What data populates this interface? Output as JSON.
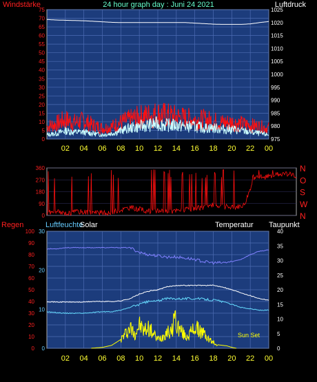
{
  "title": "24 hour graph day : Juni 24 2021",
  "colors": {
    "background": "#000000",
    "plot_bg": "#1c3c7c",
    "grid": "#4d6cb3",
    "axis_red": "#ff2020",
    "axis_white": "#ffffff",
    "axis_cyan": "#66ccff",
    "tick_yellow": "#ffff33"
  },
  "chart_data": [
    {
      "type": "line",
      "id": "wind-pressure",
      "title": "24 hour graph day : Juni 24 2021",
      "left_label": "Windstärke",
      "right_label": "Luftdruck",
      "x_ticks": [
        "02",
        "04",
        "06",
        "08",
        "10",
        "12",
        "14",
        "16",
        "18",
        "20",
        "22",
        "00"
      ],
      "left_ylim": [
        0,
        75
      ],
      "left_ticks": [
        "0",
        "5",
        "10",
        "15",
        "20",
        "25",
        "30",
        "35",
        "40",
        "45",
        "50",
        "55",
        "60",
        "65",
        "70",
        "75"
      ],
      "right_ylim": [
        975,
        1025
      ],
      "right_ticks": [
        "975",
        "980",
        "985",
        "990",
        "995",
        "1000",
        "1005",
        "1010",
        "1015",
        "1020",
        "1025"
      ],
      "grid": true,
      "series": [
        {
          "axis": "right",
          "color": "#ffffff",
          "x": [
            0,
            1,
            2,
            3,
            4,
            5,
            6,
            7,
            8,
            9,
            10,
            11,
            12,
            13,
            14,
            15,
            16,
            17,
            18,
            19,
            20,
            21,
            22,
            23,
            24
          ],
          "y": [
            1021.2,
            1021.0,
            1020.9,
            1020.8,
            1020.7,
            1020.5,
            1020.3,
            1020.1,
            1020.0,
            1020.0,
            1020.0,
            1020.0,
            1020.0,
            1020.0,
            1020.0,
            1020.0,
            1019.8,
            1019.6,
            1019.4,
            1019.3,
            1019.3,
            1019.3,
            1019.5,
            1020.0,
            1020.4
          ]
        },
        {
          "axis": "left",
          "color": "#ff1010",
          "x": [
            0,
            1,
            2,
            3,
            4,
            5,
            6,
            7,
            8,
            9,
            10,
            11,
            12,
            13,
            14,
            15,
            16,
            17,
            18,
            19,
            20,
            21,
            22,
            23,
            24
          ],
          "y": [
            9,
            11,
            14,
            12,
            13,
            10,
            8,
            9,
            12,
            14,
            16,
            17,
            18,
            17,
            16,
            15,
            14,
            14,
            13,
            12,
            12,
            11,
            10,
            9,
            8
          ]
        },
        {
          "axis": "left",
          "color": "#ccffff",
          "x": [
            0,
            1,
            2,
            3,
            4,
            5,
            6,
            7,
            8,
            9,
            10,
            11,
            12,
            13,
            14,
            15,
            16,
            17,
            18,
            19,
            20,
            21,
            22,
            23,
            24
          ],
          "y": [
            3,
            4,
            6,
            5,
            5,
            4,
            3,
            4,
            6,
            8,
            9,
            10,
            11,
            10,
            10,
            9,
            9,
            8,
            8,
            7,
            7,
            6,
            5,
            4,
            3
          ]
        }
      ]
    },
    {
      "type": "scatter",
      "id": "wind-direction",
      "x_ticks": [],
      "left_ylim": [
        0,
        360
      ],
      "left_ticks": [
        "0",
        "90",
        "180",
        "270",
        "360"
      ],
      "right_ticks": [
        "N",
        "W",
        "S",
        "O",
        "N"
      ],
      "grid": true,
      "series": [
        {
          "name": "direction",
          "color": "#ff1010",
          "x": [
            0,
            1,
            2,
            3,
            4,
            5,
            6,
            7,
            8,
            9,
            10,
            11,
            12,
            13,
            14,
            15,
            16,
            17,
            18,
            19,
            20,
            21,
            22,
            23,
            24
          ],
          "y": [
            20,
            25,
            15,
            30,
            25,
            20,
            15,
            40,
            60,
            45,
            30,
            35,
            30,
            40,
            50,
            60,
            80,
            70,
            60,
            80,
            300,
            290,
            310,
            320,
            300
          ]
        }
      ]
    },
    {
      "type": "line",
      "id": "humidity-solar-temp",
      "left_labels": [
        "Regen",
        "Luftfeuchte",
        "Solar"
      ],
      "right_labels": [
        "Temperatur",
        "Taupunkt"
      ],
      "x_ticks": [
        "02",
        "04",
        "06",
        "08",
        "10",
        "12",
        "14",
        "16",
        "18",
        "20",
        "22",
        "00"
      ],
      "rain_ylim": [
        0,
        100
      ],
      "rain_ticks": [
        "0",
        "10",
        "20",
        "30",
        "40",
        "50",
        "60",
        "70",
        "80",
        "90",
        "100"
      ],
      "hum_ticks": [
        "0",
        "10",
        "20",
        "30"
      ],
      "temp_ylim": [
        0,
        40
      ],
      "temp_ticks": [
        "0",
        "5",
        "10",
        "15",
        "20",
        "25",
        "30",
        "35",
        "40"
      ],
      "annotation": "Sun Set",
      "grid": true,
      "series": [
        {
          "axis": "rain",
          "color": "#8080ff",
          "x": [
            0,
            1,
            2,
            3,
            4,
            5,
            6,
            7,
            8,
            9,
            10,
            11,
            12,
            13,
            14,
            15,
            16,
            17,
            18,
            19,
            20,
            21,
            22,
            23,
            24
          ],
          "y": [
            85,
            85,
            86,
            86,
            86,
            86,
            86,
            86,
            86,
            86,
            82,
            80,
            79,
            78,
            78,
            77,
            76,
            74,
            73,
            73,
            74,
            76,
            80,
            83,
            84
          ]
        },
        {
          "axis": "temp",
          "color": "#ffffff",
          "x": [
            0,
            1,
            2,
            3,
            4,
            5,
            6,
            7,
            8,
            9,
            10,
            11,
            12,
            13,
            14,
            15,
            16,
            17,
            18,
            19,
            20,
            21,
            22,
            23,
            24
          ],
          "y": [
            16,
            15.8,
            15.8,
            15.8,
            15.8,
            16,
            16,
            16,
            16.2,
            17,
            18.5,
            19.5,
            20,
            21,
            21.5,
            21.5,
            21.5,
            21.5,
            21.5,
            21,
            20,
            19,
            18,
            17,
            16.5
          ]
        },
        {
          "axis": "temp",
          "color": "#66ddff",
          "x": [
            0,
            1,
            2,
            3,
            4,
            5,
            6,
            7,
            8,
            9,
            10,
            11,
            12,
            13,
            14,
            15,
            16,
            17,
            18,
            19,
            20,
            21,
            22,
            23,
            24
          ],
          "y": [
            12.5,
            12.2,
            12,
            12,
            12,
            12.2,
            12.5,
            12.5,
            13,
            14,
            15,
            16,
            16.2,
            17,
            17,
            17,
            17,
            16.8,
            16.5,
            16,
            15,
            14,
            13.5,
            13,
            13
          ]
        },
        {
          "axis": "temp",
          "color": "#ffff00",
          "x": [
            4.8,
            6,
            7,
            7.5,
            8,
            8.5,
            9,
            9.5,
            10,
            10.5,
            11,
            11.5,
            12,
            12.5,
            13,
            13.5,
            13.8,
            14,
            14.5,
            15,
            15.5,
            16,
            16.5,
            17,
            17.5,
            18,
            18.5,
            19,
            19.5,
            20,
            20.5
          ],
          "y": [
            0,
            0.3,
            1,
            2,
            3,
            5,
            7,
            5,
            8,
            6,
            7,
            5,
            3,
            4,
            6,
            5,
            12,
            8,
            6,
            4,
            5,
            7,
            6,
            5,
            3,
            2,
            1.2,
            1,
            0.8,
            0.3,
            0
          ]
        }
      ]
    }
  ]
}
